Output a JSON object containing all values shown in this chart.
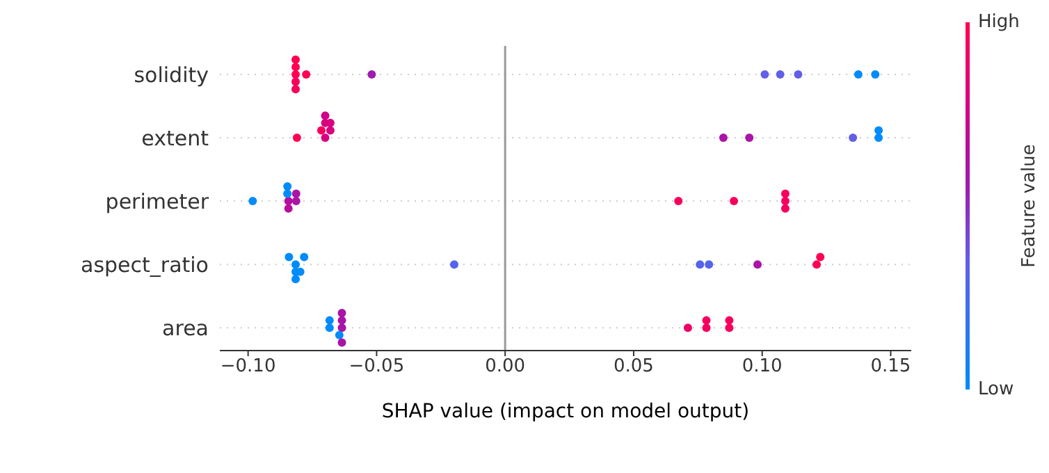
{
  "chart_data": {
    "type": "scatter",
    "orientation": "horizontal",
    "xlabel": "SHAP value (impact on model output)",
    "clabel": "Feature value",
    "annotations": [
      "High",
      "Low"
    ],
    "categories": [
      "solidity",
      "extent",
      "perimeter",
      "aspect_ratio",
      "area"
    ],
    "series": [
      {
        "values": [
          -0.0815,
          -0.081,
          -0.0982,
          -0.0815,
          -0.0635
        ],
        "colors": [
          "#ff0052",
          "#ff0052",
          "#008bfb",
          "#008bfb",
          "#aa14a7"
        ]
      },
      {
        "values": [
          -0.0815,
          -0.07,
          -0.0843,
          -0.0841,
          -0.0683
        ],
        "colors": [
          "#ff0052",
          "#d9007f",
          "#b70e9d",
          "#008bfb",
          "#008bfb"
        ]
      },
      {
        "values": [
          -0.0815,
          -0.068,
          -0.0847,
          -0.0815,
          -0.0635
        ],
        "colors": [
          "#f6005d",
          "#d9007f",
          "#008bfb",
          "#008bfb",
          "#aa14a7"
        ]
      },
      {
        "values": [
          -0.0815,
          -0.0715,
          -0.0813,
          -0.0797,
          -0.0683
        ],
        "colors": [
          "#ff0052",
          "#f6005d",
          "#aa14a7",
          "#008bfb",
          "#008bfb"
        ]
      },
      {
        "values": [
          -0.0815,
          -0.07,
          -0.0843,
          -0.0782,
          -0.0645
        ],
        "colors": [
          "#f6005d",
          "#d9007f",
          "#b70e9d",
          "#008bfb",
          "#008bfb"
        ]
      },
      {
        "values": [
          -0.0774,
          -0.068,
          -0.0813,
          -0.0815,
          -0.0635
        ],
        "colors": [
          "#ff0052",
          "#d9007f",
          "#aa14a7",
          "#008bfb",
          "#aa14a7"
        ]
      },
      {
        "values": [
          -0.0519,
          -0.07,
          -0.0847,
          -0.0198,
          -0.0635
        ],
        "colors": [
          "#9d1bb0",
          "#d0008a",
          "#008bfb",
          "#5464eb",
          "#aa14a7"
        ]
      },
      {
        "values": [
          0.101,
          0.0849,
          0.0674,
          0.0758,
          0.0711
        ],
        "colors": [
          "#625ee8",
          "#aa14a7",
          "#f6005d",
          "#5464eb",
          "#ec0068"
        ]
      },
      {
        "values": [
          0.107,
          0.095,
          0.089,
          0.0793,
          0.0783
        ],
        "colors": [
          "#625ee8",
          "#aa14a7",
          "#f6005d",
          "#5464eb",
          "#f6005d"
        ]
      },
      {
        "values": [
          0.114,
          0.1353,
          0.109,
          0.0982,
          0.0783
        ],
        "colors": [
          "#625ee8",
          "#625ee8",
          "#f6005d",
          "#aa14a7",
          "#f6005d"
        ]
      },
      {
        "values": [
          0.1374,
          0.1453,
          0.109,
          0.1212,
          0.0872
        ],
        "colors": [
          "#008bfb",
          "#008bfb",
          "#f6005d",
          "#ff0052",
          "#f6005d"
        ]
      },
      {
        "values": [
          0.144,
          0.1453,
          0.109,
          0.1226,
          0.0872
        ],
        "colors": [
          "#008bfb",
          "#008bfb",
          "#f6005d",
          "#ff0052",
          "#f6005d"
        ]
      }
    ],
    "xlim": [
      -0.111,
      0.158
    ],
    "xticks": [
      {
        "value": -0.1,
        "label": "−0.10"
      },
      {
        "value": -0.05,
        "label": "−0.05"
      },
      {
        "value": 0,
        "label": "0.00"
      },
      {
        "value": 0.05,
        "label": "0.05"
      },
      {
        "value": 0.1,
        "label": "0.10"
      },
      {
        "value": 0.15,
        "label": "0.15"
      }
    ],
    "ref_lines": [
      {
        "axis": "x",
        "value": 0,
        "color": "#999999"
      }
    ],
    "grid": "y",
    "marker": "circle",
    "legend": false
  }
}
